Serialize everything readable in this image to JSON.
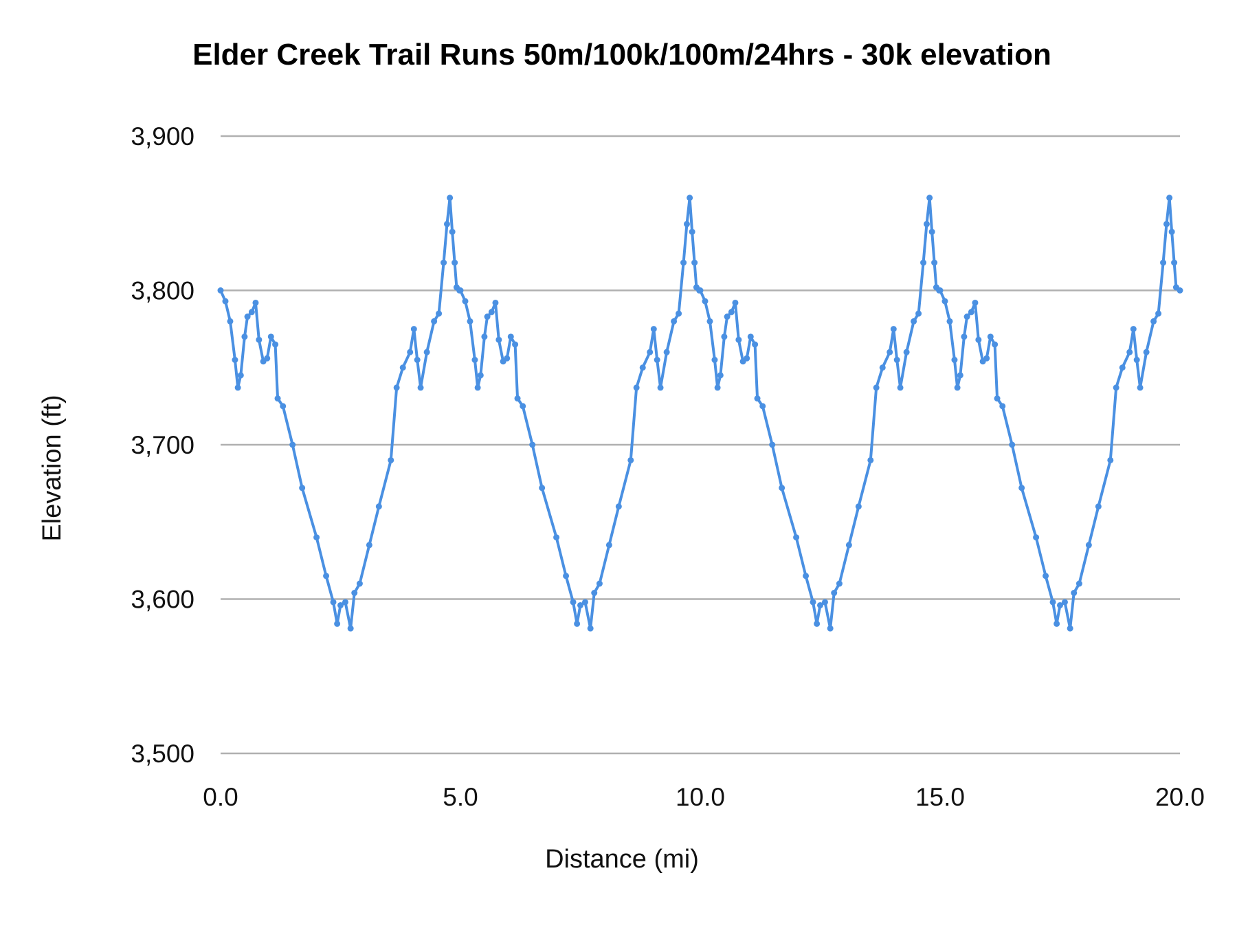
{
  "chart_data": {
    "type": "line",
    "title": "Elder Creek Trail Runs 50m/100k/100m/24hrs - 30k elevation",
    "xlabel": "Distance (mi)",
    "ylabel": "Elevation (ft)",
    "xlim": [
      0,
      20
    ],
    "ylim": [
      3500,
      3900
    ],
    "xticks": [
      "0.0",
      "5.0",
      "10.0",
      "15.0",
      "20.0"
    ],
    "yticks": [
      "3,500",
      "3,600",
      "3,700",
      "3,800",
      "3,900"
    ],
    "grid": "horizontal",
    "legend": "none",
    "line_color": "#4a90e2",
    "markers": true,
    "series": [
      {
        "x": [
          0,
          0.1,
          0.2,
          0.3,
          0.36,
          0.42,
          0.5,
          0.56,
          0.65,
          0.73,
          0.8,
          0.89,
          0.97,
          1.05,
          1.14,
          1.19,
          1.3,
          1.5,
          1.7,
          2.0,
          2.2,
          2.35,
          2.43,
          2.5,
          2.6,
          2.71,
          2.79,
          2.9,
          3.1,
          3.3,
          3.55,
          3.67,
          3.8,
          3.95,
          4.03,
          4.1,
          4.17,
          4.3,
          4.45,
          4.55,
          4.65,
          4.72,
          4.78,
          4.83,
          4.88,
          4.92,
          4.98,
          5,
          5.1,
          5.2,
          5.3,
          5.36,
          5.42,
          5.5,
          5.56,
          5.65,
          5.73,
          5.8,
          5.89,
          5.97,
          6.05,
          6.14,
          6.19,
          6.3,
          6.5,
          6.7,
          7.0,
          7.2,
          7.35,
          7.43,
          7.5,
          7.6,
          7.71,
          7.79,
          7.9,
          8.1,
          8.3,
          8.55,
          8.67,
          8.8,
          8.95,
          9.03,
          9.1,
          9.17,
          9.3,
          9.45,
          9.55,
          9.65,
          9.72,
          9.78,
          9.83,
          9.88,
          9.92,
          9.98,
          10,
          10.1,
          10.2,
          10.3,
          10.36,
          10.42,
          10.5,
          10.56,
          10.65,
          10.73,
          10.8,
          10.89,
          10.97,
          11.05,
          11.14,
          11.19,
          11.3,
          11.5,
          11.7,
          12.0,
          12.2,
          12.35,
          12.43,
          12.5,
          12.6,
          12.71,
          12.79,
          12.9,
          13.1,
          13.3,
          13.55,
          13.67,
          13.8,
          13.95,
          14.03,
          14.1,
          14.17,
          14.3,
          14.45,
          14.55,
          14.65,
          14.72,
          14.78,
          14.83,
          14.88,
          14.92,
          14.98,
          15,
          15.1,
          15.2,
          15.3,
          15.36,
          15.42,
          15.5,
          15.56,
          15.65,
          15.73,
          15.8,
          15.89,
          15.97,
          16.05,
          16.14,
          16.19,
          16.3,
          16.5,
          16.7,
          17.0,
          17.2,
          17.35,
          17.43,
          17.5,
          17.6,
          17.71,
          17.79,
          17.9,
          18.1,
          18.3,
          18.55,
          18.67,
          18.8,
          18.95,
          19.03,
          19.1,
          19.17,
          19.3,
          19.45,
          19.55,
          19.65,
          19.72,
          19.78,
          19.83,
          19.88,
          19.92,
          20.0
        ],
        "y": [
          3800,
          3793,
          3780,
          3755,
          3737,
          3745,
          3770,
          3783,
          3786,
          3792,
          3768,
          3754,
          3756,
          3770,
          3765,
          3730,
          3725,
          3700,
          3672,
          3640,
          3615,
          3598,
          3584,
          3596,
          3598,
          3581,
          3604,
          3610,
          3635,
          3660,
          3690,
          3737,
          3750,
          3760,
          3775,
          3755,
          3737,
          3760,
          3780,
          3785,
          3818,
          3843,
          3860,
          3838,
          3818,
          3802,
          3800,
          3800,
          3793,
          3780,
          3755,
          3737,
          3745,
          3770,
          3783,
          3786,
          3792,
          3768,
          3754,
          3756,
          3770,
          3765,
          3730,
          3725,
          3700,
          3672,
          3640,
          3615,
          3598,
          3584,
          3596,
          3598,
          3581,
          3604,
          3610,
          3635,
          3660,
          3690,
          3737,
          3750,
          3760,
          3775,
          3755,
          3737,
          3760,
          3780,
          3785,
          3818,
          3843,
          3860,
          3838,
          3818,
          3802,
          3800,
          3800,
          3793,
          3780,
          3755,
          3737,
          3745,
          3770,
          3783,
          3786,
          3792,
          3768,
          3754,
          3756,
          3770,
          3765,
          3730,
          3725,
          3700,
          3672,
          3640,
          3615,
          3598,
          3584,
          3596,
          3598,
          3581,
          3604,
          3610,
          3635,
          3660,
          3690,
          3737,
          3750,
          3760,
          3775,
          3755,
          3737,
          3760,
          3780,
          3785,
          3818,
          3843,
          3860,
          3838,
          3818,
          3802,
          3800,
          3800,
          3793,
          3780,
          3755,
          3737,
          3745,
          3770,
          3783,
          3786,
          3792,
          3768,
          3754,
          3756,
          3770,
          3765,
          3730,
          3725,
          3700,
          3672,
          3640,
          3615,
          3598,
          3584,
          3596,
          3598,
          3581,
          3604,
          3610,
          3635,
          3660,
          3690,
          3737,
          3750,
          3760,
          3775,
          3755,
          3737,
          3760,
          3780,
          3785,
          3818,
          3843,
          3860,
          3838,
          3818,
          3802,
          3800
        ]
      }
    ]
  }
}
